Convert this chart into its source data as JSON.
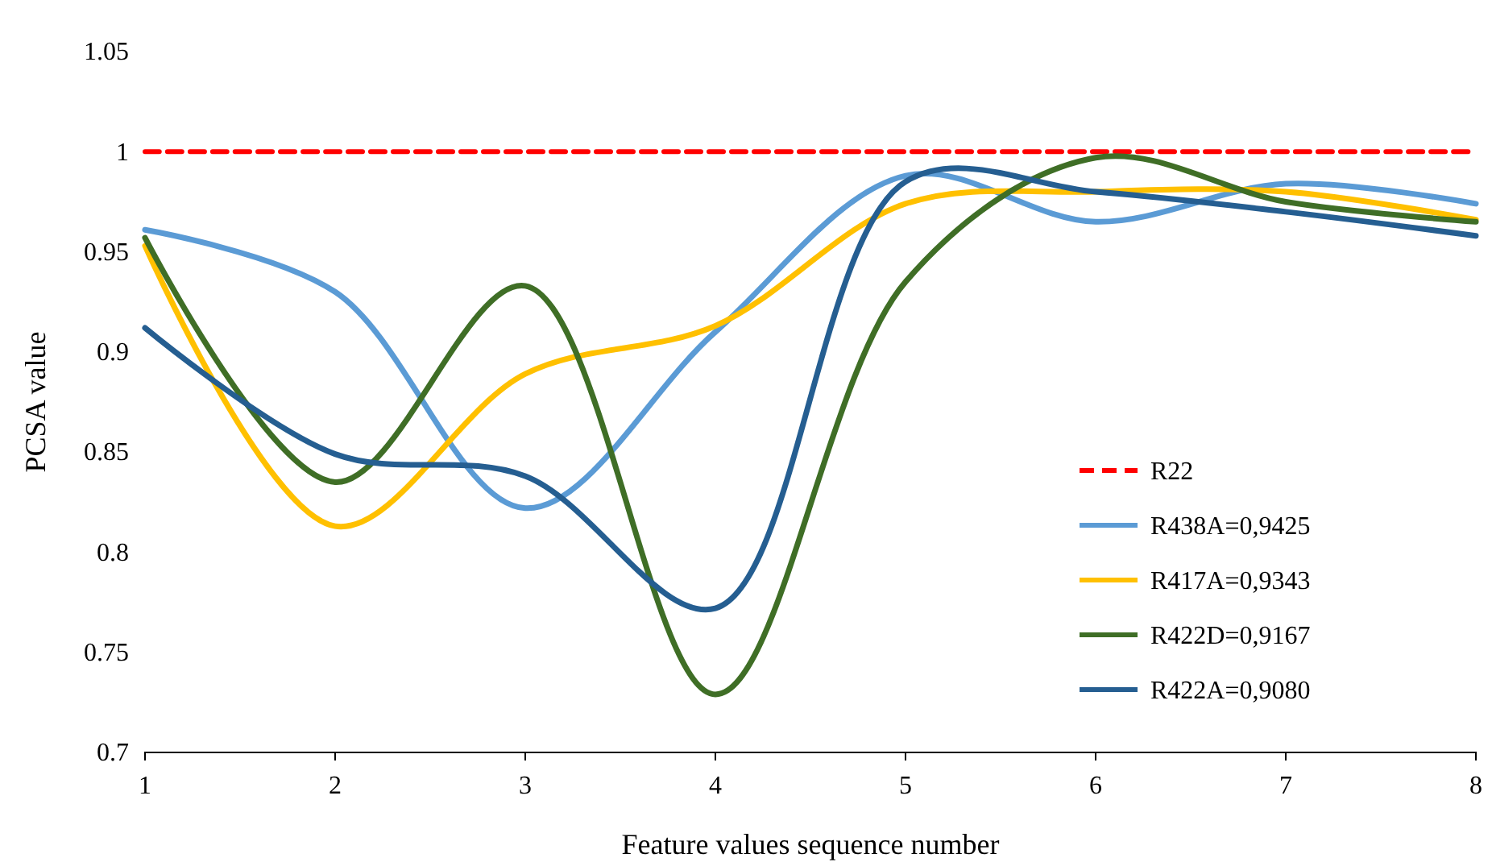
{
  "chart_data": {
    "type": "line",
    "xlabel": "Feature values sequence number",
    "ylabel": "PCSA value",
    "x": [
      1,
      2,
      3,
      4,
      5,
      6,
      7,
      8
    ],
    "xlim": [
      1,
      8
    ],
    "xticks": [
      1,
      2,
      3,
      4,
      5,
      6,
      7,
      8
    ],
    "ylim": [
      0.7,
      1.05
    ],
    "yticks": [
      0.7,
      0.75,
      0.8,
      0.85,
      0.9,
      0.95,
      1,
      1.05
    ],
    "grid": false,
    "legend": "right",
    "marker": "none",
    "series": [
      {
        "name": "R22",
        "color": "#ff0000",
        "line_style": "dashed",
        "values": [
          1,
          1,
          1,
          1,
          1,
          1,
          1,
          1
        ]
      },
      {
        "name": "R438A=0,9425",
        "color": "#5b9bd5",
        "line_style": "solid",
        "values": [
          0.961,
          0.93,
          0.822,
          0.91,
          0.988,
          0.965,
          0.984,
          0.974
        ]
      },
      {
        "name": "R417A=0,9343",
        "color": "#ffc000",
        "line_style": "solid",
        "values": [
          0.953,
          0.813,
          0.889,
          0.913,
          0.974,
          0.98,
          0.98,
          0.966
        ]
      },
      {
        "name": "R422D=0,9167",
        "color": "#3f6e26",
        "line_style": "solid",
        "values": [
          0.957,
          0.835,
          0.933,
          0.729,
          0.935,
          0.997,
          0.975,
          0.965
        ]
      },
      {
        "name": "R422A=0,9080",
        "color": "#255e91",
        "line_style": "solid",
        "values": [
          0.912,
          0.849,
          0.838,
          0.772,
          0.985,
          0.98,
          0.97,
          0.958
        ]
      }
    ]
  }
}
